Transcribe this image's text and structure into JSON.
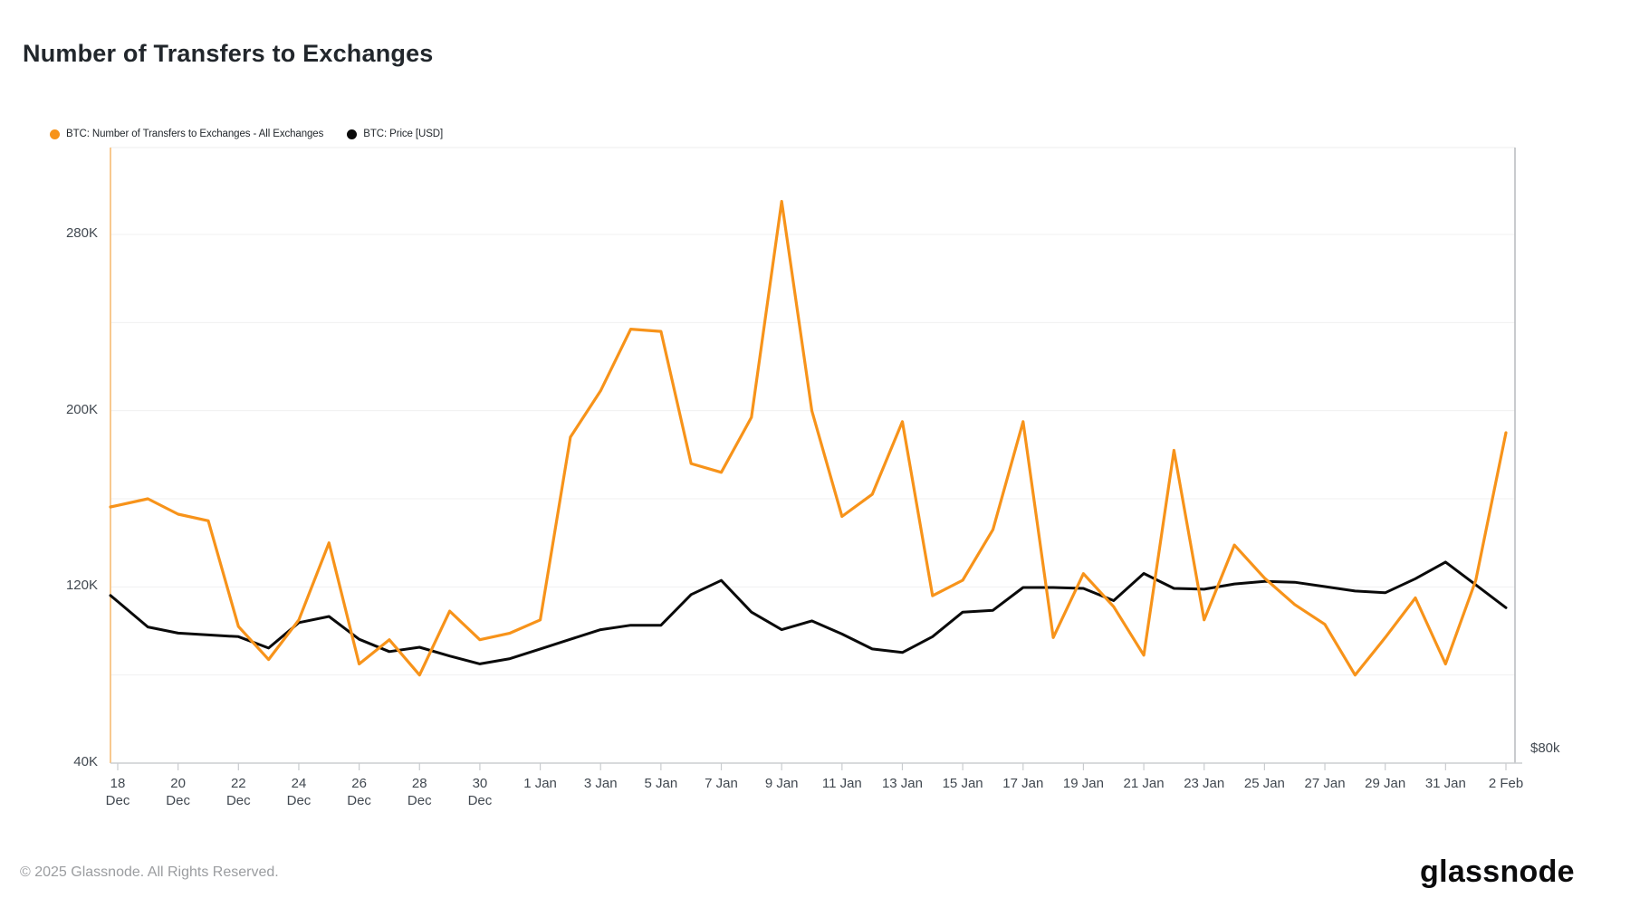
{
  "title": "Number of Transfers to Exchanges",
  "legend": [
    {
      "label": "BTC: Number of Transfers to Exchanges - All Exchanges",
      "color": "#F7931A"
    },
    {
      "label": "BTC: Price [USD]",
      "color": "#0A0A0A"
    }
  ],
  "y_axis": {
    "tick_labels": [
      {
        "label": "280K",
        "value": 280
      },
      {
        "label": "200K",
        "value": 200
      },
      {
        "label": "120K",
        "value": 120
      },
      {
        "label": "40K",
        "value": 40
      }
    ],
    "gridline_values": [
      280,
      240,
      200,
      160,
      120,
      80
    ]
  },
  "right_axis": {
    "label": "$80k"
  },
  "x_axis": {
    "labels": [
      {
        "top": "18",
        "bottom": "Dec",
        "day": 0
      },
      {
        "top": "20",
        "bottom": "Dec",
        "day": 2
      },
      {
        "top": "22",
        "bottom": "Dec",
        "day": 4
      },
      {
        "top": "24",
        "bottom": "Dec",
        "day": 6
      },
      {
        "top": "26",
        "bottom": "Dec",
        "day": 8
      },
      {
        "top": "28",
        "bottom": "Dec",
        "day": 10
      },
      {
        "top": "30",
        "bottom": "Dec",
        "day": 12
      },
      {
        "top": "1 Jan",
        "bottom": "",
        "day": 14
      },
      {
        "top": "3 Jan",
        "bottom": "",
        "day": 16
      },
      {
        "top": "5 Jan",
        "bottom": "",
        "day": 18
      },
      {
        "top": "7 Jan",
        "bottom": "",
        "day": 20
      },
      {
        "top": "9 Jan",
        "bottom": "",
        "day": 22
      },
      {
        "top": "11 Jan",
        "bottom": "",
        "day": 24
      },
      {
        "top": "13 Jan",
        "bottom": "",
        "day": 26
      },
      {
        "top": "15 Jan",
        "bottom": "",
        "day": 28
      },
      {
        "top": "17 Jan",
        "bottom": "",
        "day": 30
      },
      {
        "top": "19 Jan",
        "bottom": "",
        "day": 32
      },
      {
        "top": "21 Jan",
        "bottom": "",
        "day": 34
      },
      {
        "top": "23 Jan",
        "bottom": "",
        "day": 36
      },
      {
        "top": "25 Jan",
        "bottom": "",
        "day": 38
      },
      {
        "top": "27 Jan",
        "bottom": "",
        "day": 40
      },
      {
        "top": "29 Jan",
        "bottom": "",
        "day": 42
      },
      {
        "top": "31 Jan",
        "bottom": "",
        "day": 44
      },
      {
        "top": "2 Feb",
        "bottom": "",
        "day": 46
      }
    ]
  },
  "footer": {
    "copyright": "© 2025 Glassnode. All Rights Reserved.",
    "brand": "glassnode"
  },
  "chart_data": {
    "type": "line",
    "title": "Number of Transfers to Exchanges",
    "x": [
      "18 Dec",
      "19 Dec",
      "20 Dec",
      "21 Dec",
      "22 Dec",
      "23 Dec",
      "24 Dec",
      "25 Dec",
      "26 Dec",
      "27 Dec",
      "28 Dec",
      "29 Dec",
      "30 Dec",
      "31 Dec",
      "1 Jan",
      "2 Jan",
      "3 Jan",
      "4 Jan",
      "5 Jan",
      "6 Jan",
      "7 Jan",
      "8 Jan",
      "9 Jan",
      "10 Jan",
      "11 Jan",
      "12 Jan",
      "13 Jan",
      "14 Jan",
      "15 Jan",
      "16 Jan",
      "17 Jan",
      "18 Jan",
      "19 Jan",
      "20 Jan",
      "21 Jan",
      "22 Jan",
      "23 Jan",
      "24 Jan",
      "25 Jan",
      "26 Jan",
      "27 Jan",
      "28 Jan",
      "29 Jan",
      "30 Jan",
      "31 Jan",
      "1 Feb",
      "2 Feb"
    ],
    "series": [
      {
        "name": "BTC: Number of Transfers to Exchanges - All Exchanges",
        "color": "#F7931A",
        "axis": "left",
        "unit": "transfers (thousands)",
        "values": [
          157,
          160,
          153,
          150,
          102,
          87,
          105,
          140,
          85,
          96,
          80,
          109,
          96,
          99,
          105,
          188,
          209,
          237,
          236,
          176,
          172,
          197,
          295,
          200,
          152,
          162,
          195,
          116,
          123,
          146,
          195,
          97,
          126,
          111,
          89,
          182,
          105,
          139,
          124,
          112,
          103,
          80,
          97,
          115,
          85,
          123,
          190
        ]
      },
      {
        "name": "BTC: Price [USD]",
        "color": "#0A0A0A",
        "axis": "right",
        "unit": "USD (thousands, approx)",
        "values": [
          98.4,
          95.5,
          94.8,
          94.6,
          94.4,
          93.1,
          96.0,
          96.7,
          94.1,
          92.7,
          93.2,
          92.2,
          91.3,
          91.9,
          93.0,
          94.1,
          95.2,
          95.7,
          95.7,
          99.2,
          100.8,
          97.2,
          95.2,
          96.2,
          94.7,
          93.0,
          92.6,
          94.4,
          97.2,
          97.4,
          100.0,
          100.0,
          99.9,
          98.5,
          101.6,
          99.9,
          99.8,
          100.4,
          100.7,
          100.6,
          100.1,
          99.6,
          99.4,
          101.0,
          102.9,
          100.3,
          97.7
        ]
      }
    ],
    "ylim_left_thousands": [
      40,
      300
    ],
    "right_axis_visible_label": "$80k",
    "grid": "horizontal",
    "legend_position": "top"
  }
}
